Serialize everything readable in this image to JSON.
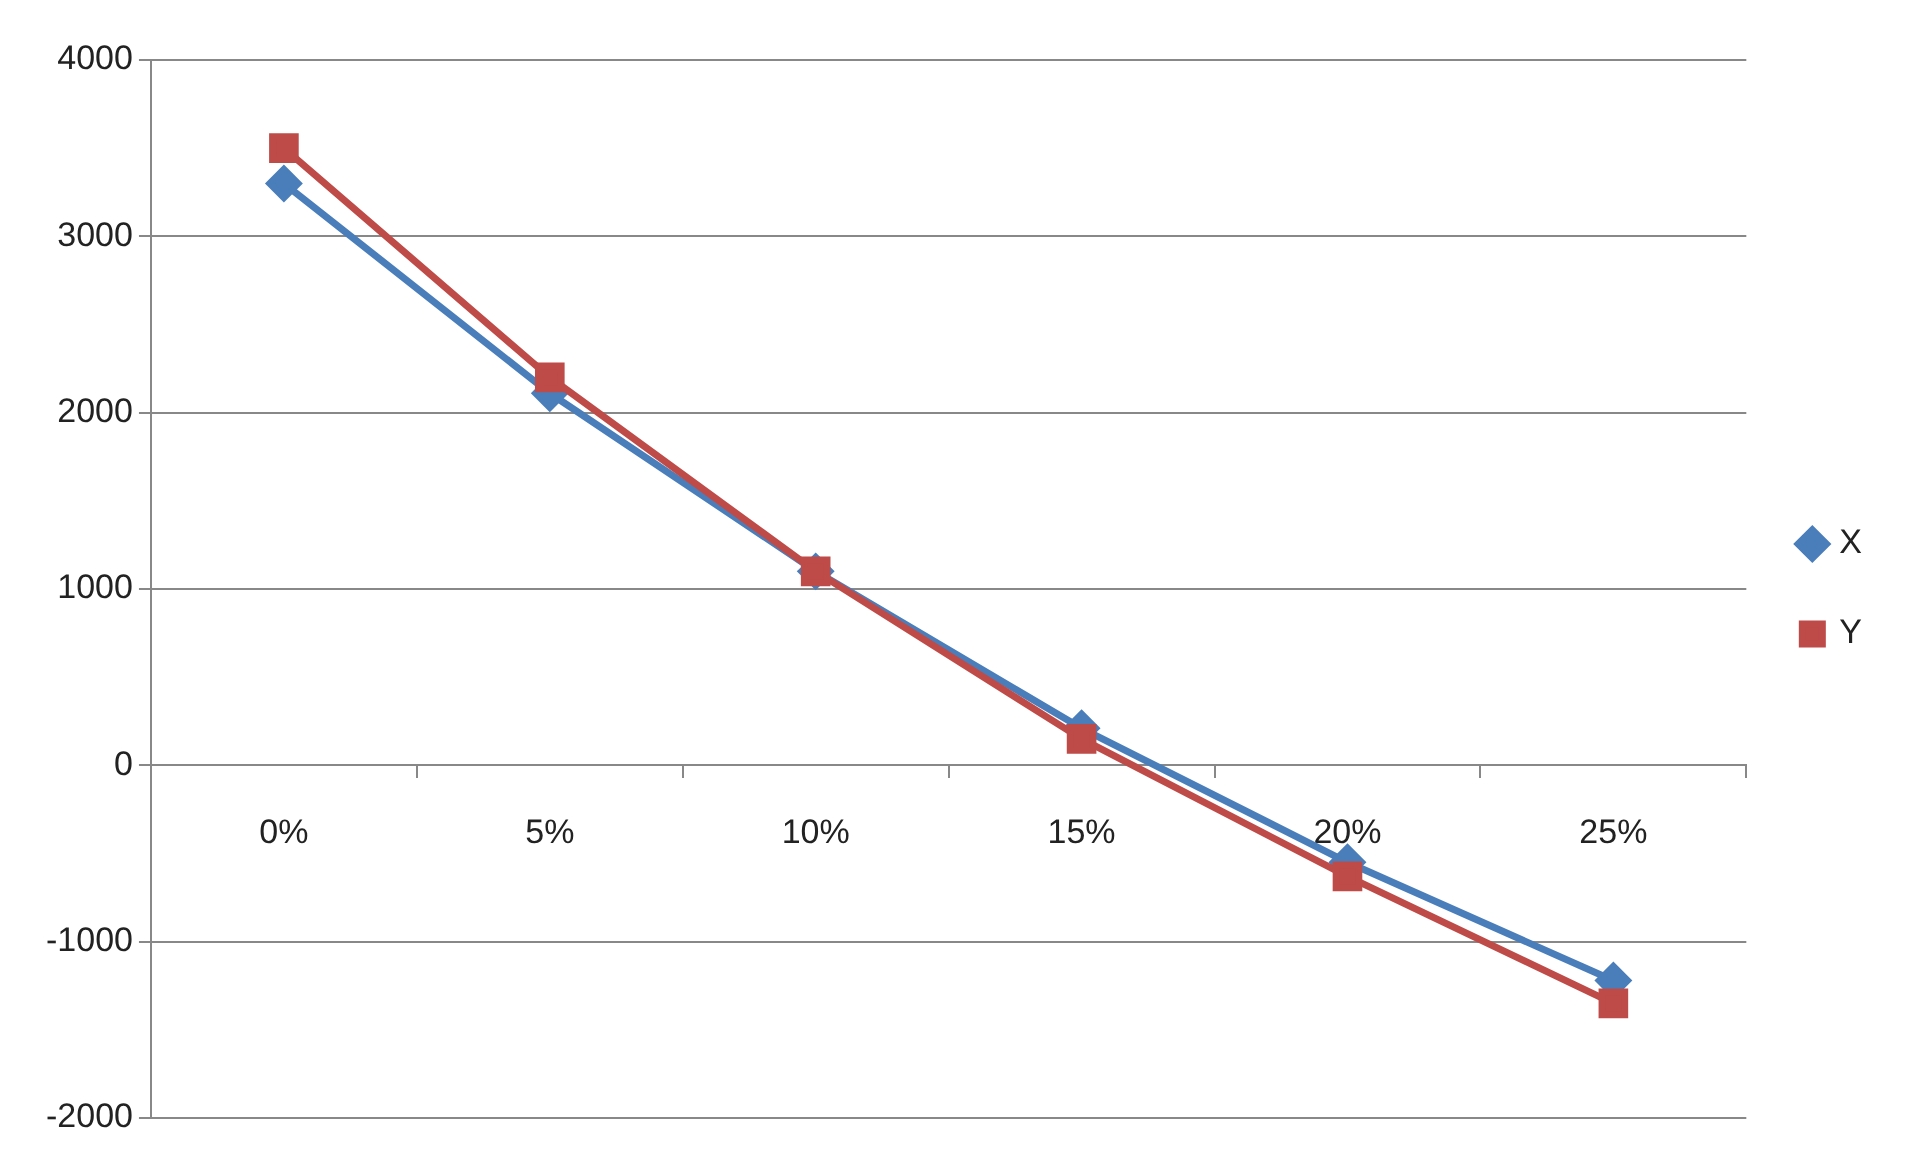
{
  "chart_data": {
    "type": "line",
    "categories": [
      "0%",
      "5%",
      "10%",
      "15%",
      "20%",
      "25%"
    ],
    "series": [
      {
        "name": "X",
        "color": "#4a7ebb",
        "marker": "diamond",
        "values": [
          3300,
          2110,
          1100,
          210,
          -550,
          -1220
        ]
      },
      {
        "name": "Y",
        "color": "#be4b48",
        "marker": "square",
        "values": [
          3500,
          2200,
          1100,
          150,
          -630,
          -1350
        ]
      }
    ],
    "ylim": [
      -2000,
      4000
    ],
    "yticks": [
      -2000,
      -1000,
      0,
      1000,
      2000,
      3000,
      4000
    ],
    "grid": "y",
    "legend": "right"
  }
}
